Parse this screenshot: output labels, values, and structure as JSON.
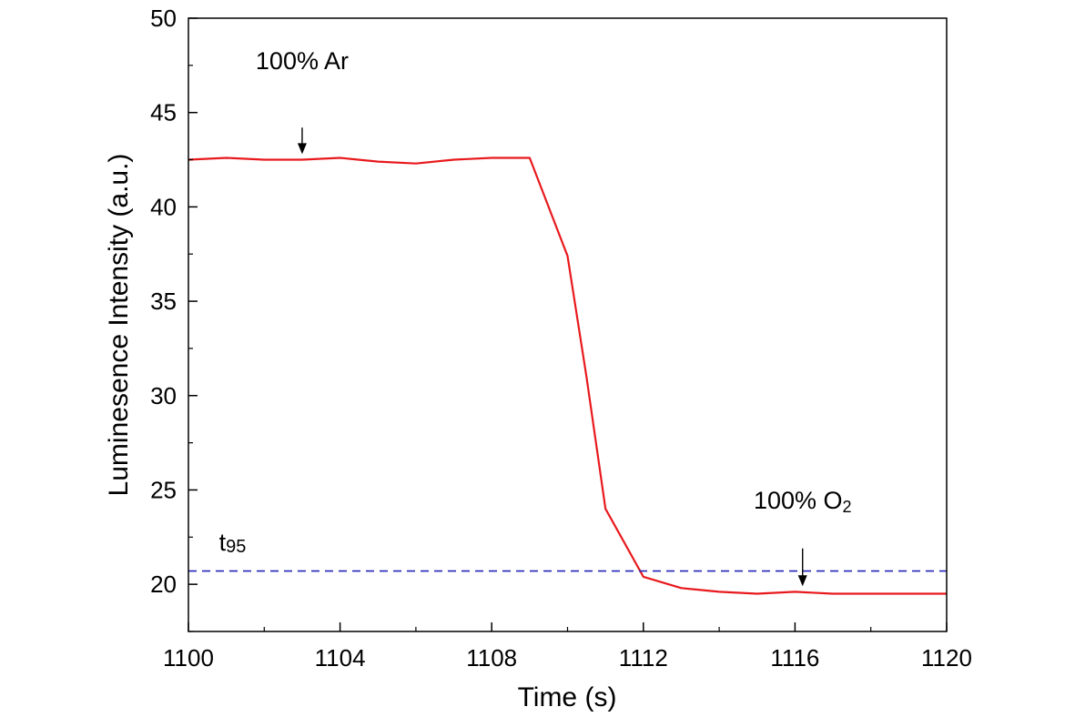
{
  "chart_data": {
    "type": "line",
    "title": "",
    "xlabel": "Time (s)",
    "ylabel": "Luminesence Intensity (a.u.)",
    "xlim": [
      1100,
      1120
    ],
    "ylim": [
      17.5,
      50
    ],
    "x_ticks": [
      1100,
      1104,
      1108,
      1112,
      1116,
      1120
    ],
    "x_minor_ticks": [
      1102,
      1106,
      1110,
      1114,
      1118
    ],
    "y_ticks": [
      20,
      25,
      30,
      35,
      40,
      45,
      50
    ],
    "y_minor_ticks": [
      17.5,
      22.5,
      27.5,
      32.5,
      37.5,
      42.5,
      47.5
    ],
    "grid": false,
    "series": [
      {
        "color": "#e8191d",
        "style": "solid",
        "x": [
          1100,
          1101,
          1102,
          1103,
          1104,
          1105,
          1106,
          1107,
          1108,
          1109,
          1110,
          1110.5,
          1111,
          1112,
          1113,
          1114,
          1115,
          1116,
          1117,
          1118,
          1119,
          1120
        ],
        "y": [
          42.5,
          42.6,
          42.5,
          42.5,
          42.6,
          42.4,
          42.3,
          42.5,
          42.6,
          42.6,
          37.4,
          31.0,
          24.0,
          20.4,
          19.8,
          19.6,
          19.5,
          19.6,
          19.5,
          19.5,
          19.5,
          19.5
        ]
      },
      {
        "color": "#2323b8",
        "style": "dashed",
        "x": [
          1100,
          1120
        ],
        "y": [
          20.7,
          20.7
        ]
      }
    ],
    "annotations": [
      {
        "text": "100% Ar",
        "x": 1103,
        "y": 47.3,
        "arrow_from_y": 44.2,
        "arrow_to_y": 42.8
      },
      {
        "text": "100% O",
        "subscript": "2",
        "x": 1116.2,
        "y": 24.0,
        "arrow_from_y": 21.9,
        "arrow_to_y": 19.9
      },
      {
        "text": "t",
        "subscript": "95",
        "x": 1101,
        "y": 21.8
      }
    ]
  }
}
